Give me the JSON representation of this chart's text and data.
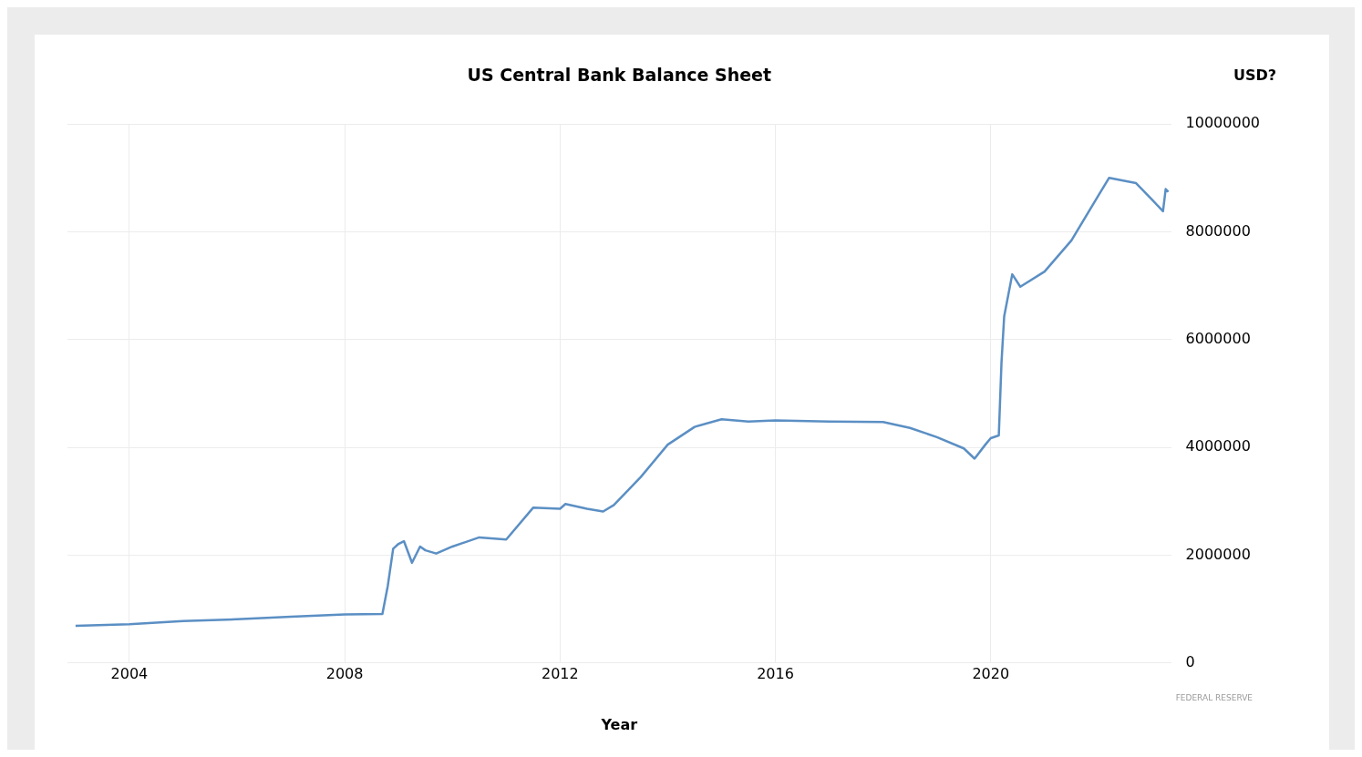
{
  "chart_data": {
    "type": "line",
    "title": "US Central Bank Balance Sheet",
    "xlabel": "Year",
    "ylabel": "USD?",
    "annotations": [
      "FEDERAL RESERVE"
    ],
    "x": [
      2003.0,
      2004.0,
      2005.0,
      2006.0,
      2007.0,
      2008.0,
      2008.7,
      2008.8,
      2008.9,
      2009.0,
      2009.1,
      2009.25,
      2009.4,
      2009.5,
      2009.7,
      2010.0,
      2010.5,
      2011.0,
      2011.5,
      2012.0,
      2012.1,
      2012.5,
      2012.8,
      2013.0,
      2013.5,
      2014.0,
      2014.5,
      2015.0,
      2015.5,
      2016.0,
      2017.0,
      2018.0,
      2018.5,
      2019.0,
      2019.5,
      2019.7,
      2019.9,
      2020.0,
      2020.15,
      2020.2,
      2020.25,
      2020.4,
      2020.55,
      2021.0,
      2021.5,
      2022.0,
      2022.2,
      2022.7,
      2023.0,
      2023.2,
      2023.25,
      2023.3
    ],
    "series": [
      {
        "color": "#5b8fc4",
        "values": [
          690000,
          720000,
          780000,
          810000,
          860000,
          900000,
          910000,
          1430000,
          2120000,
          2210000,
          2260000,
          1860000,
          2160000,
          2090000,
          2030000,
          2160000,
          2330000,
          2290000,
          2880000,
          2860000,
          2950000,
          2860000,
          2810000,
          2930000,
          3450000,
          4050000,
          4380000,
          4520000,
          4480000,
          4500000,
          4480000,
          4470000,
          4360000,
          4190000,
          3980000,
          3790000,
          4050000,
          4170000,
          4220000,
          5570000,
          6430000,
          7210000,
          6980000,
          7260000,
          7840000,
          8670000,
          9000000,
          8900000,
          8590000,
          8380000,
          8790000,
          8740000
        ]
      }
    ],
    "xlim": [
      2002.85,
      2023.35
    ],
    "xticks": [
      2004,
      2008,
      2012,
      2016,
      2020
    ],
    "ylim": [
      0,
      10000000
    ],
    "yticks": [
      0,
      2000000,
      4000000,
      6000000,
      8000000,
      10000000
    ],
    "grid": true,
    "legend": false,
    "marker": "none",
    "line_style": "solid"
  }
}
